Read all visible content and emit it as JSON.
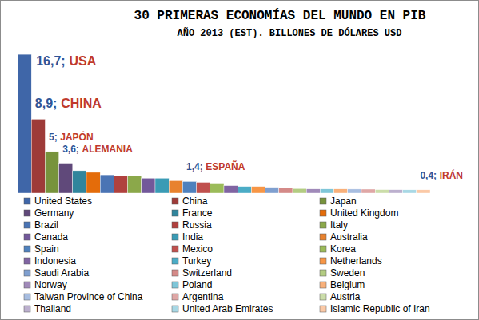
{
  "chart_data": {
    "type": "bar",
    "title": "30 PRIMERAS ECONOMÍAS DEL MUNDO EN PIB",
    "subtitle": "AÑO 2013 (EST). BILLONES DE DÓLARES USD",
    "categories": [
      "United States",
      "China",
      "Japan",
      "Germany",
      "France",
      "United Kingdom",
      "Brazil",
      "Russia",
      "Italy",
      "Canada",
      "India",
      "Australia",
      "Spain",
      "Mexico",
      "Korea",
      "Indonesia",
      "Turkey",
      "Netherlands",
      "Saudi Arabia",
      "Switzerland",
      "Sweden",
      "Norway",
      "Poland",
      "Belgium",
      "Taiwan Province of China",
      "Argentina",
      "Austria",
      "Thailand",
      "United Arab Emirates",
      "Islamic Republic of Iran"
    ],
    "values": [
      16.7,
      8.9,
      5,
      3.6,
      2.7,
      2.5,
      2.2,
      2.1,
      2.1,
      1.8,
      1.8,
      1.5,
      1.4,
      1.3,
      1.2,
      0.9,
      0.8,
      0.8,
      0.7,
      0.65,
      0.55,
      0.5,
      0.5,
      0.5,
      0.49,
      0.48,
      0.42,
      0.41,
      0.4,
      0.4
    ],
    "value_labels": [
      "16,7;",
      "8,9;",
      "5;",
      "3,6;",
      null,
      null,
      null,
      null,
      null,
      null,
      null,
      null,
      "1,4;",
      null,
      null,
      null,
      null,
      null,
      null,
      null,
      null,
      null,
      null,
      null,
      null,
      null,
      null,
      null,
      null,
      "0,4;"
    ],
    "data_labels": true,
    "annotations": [
      {
        "text": "USA",
        "category": "United States"
      },
      {
        "text": "CHINA",
        "category": "China"
      },
      {
        "text": "JAPÓN",
        "category": "Japan"
      },
      {
        "text": "ALEMANIA",
        "category": "Germany"
      },
      {
        "text": "ESPAÑA",
        "category": "Spain"
      },
      {
        "text": "IRÁN",
        "category": "Islamic Republic of Iran"
      }
    ],
    "colors": [
      "#3F66A8",
      "#9E3B39",
      "#77933C",
      "#60497A",
      "#31859C",
      "#E46C0A",
      "#4A74B4",
      "#B0413E",
      "#8BA84A",
      "#72589A",
      "#3A9BB5",
      "#E8822E",
      "#4F81BD",
      "#C0504D",
      "#9BBB59",
      "#8064A2",
      "#4BACC6",
      "#F79646",
      "#7F9FCF",
      "#D48A88",
      "#B3CC82",
      "#A08AB9",
      "#7FC6D8",
      "#F8B07A",
      "#A7BDE0",
      "#DFA7A6",
      "#CBDDA9",
      "#BCB0CE",
      "#A8D8E5",
      "#FBC9A6"
    ],
    "ylim": [
      0,
      17
    ],
    "tick_labels": false,
    "legend": "bottom"
  }
}
